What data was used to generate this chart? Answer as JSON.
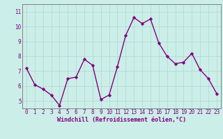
{
  "x": [
    0,
    1,
    2,
    3,
    4,
    5,
    6,
    7,
    8,
    9,
    10,
    11,
    12,
    13,
    14,
    15,
    16,
    17,
    18,
    19,
    20,
    21,
    22,
    23
  ],
  "y": [
    7.2,
    6.1,
    5.8,
    5.4,
    4.7,
    6.5,
    6.6,
    7.8,
    7.4,
    5.1,
    5.4,
    7.3,
    9.4,
    10.6,
    10.2,
    10.5,
    8.9,
    8.0,
    7.5,
    7.6,
    8.2,
    7.1,
    6.5,
    5.5
  ],
  "line_color": "#800080",
  "marker": "D",
  "marker_size": 2.2,
  "line_width": 1.0,
  "bg_color": "#cceee8",
  "xlabel": "Windchill (Refroidissement éolien,°C)",
  "xlabel_color": "#800080",
  "xlabel_fontsize": 6.0,
  "tick_color": "#800080",
  "tick_fontsize": 5.5,
  "ylim": [
    4.5,
    11.5
  ],
  "yticks": [
    5,
    6,
    7,
    8,
    9,
    10,
    11
  ],
  "grid_color": "#aad8d0",
  "spine_color": "#808080",
  "font_family": "monospace"
}
